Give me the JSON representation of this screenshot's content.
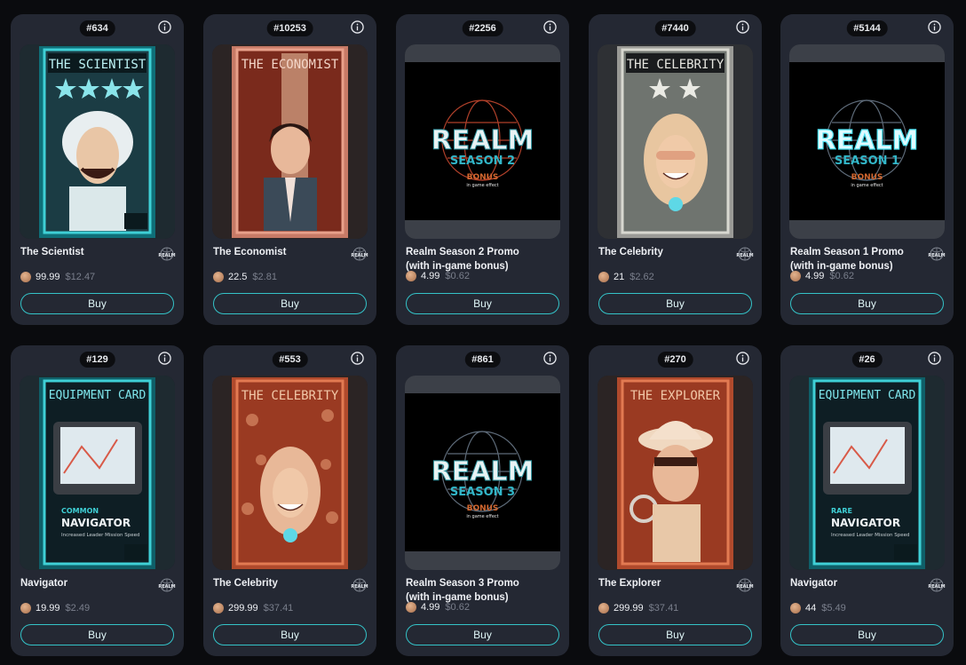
{
  "cards": [
    {
      "id": "#634",
      "name": "The Scientist",
      "price": "99.99",
      "usd": "$12.47",
      "buy": "Buy",
      "art_title": "THE SCIENTIST",
      "art_kind": "character",
      "theme": "teal"
    },
    {
      "id": "#10253",
      "name": "The Economist",
      "price": "22.5",
      "usd": "$2.81",
      "buy": "Buy",
      "art_title": "THE ECONOMIST",
      "art_kind": "character",
      "theme": "red"
    },
    {
      "id": "#2256",
      "name": "Realm Season 2 Promo (with in-game bonus)",
      "price": "4.99",
      "usd": "$0.62",
      "buy": "Buy",
      "art_title": "REALM",
      "art_sub": "SEASON 2",
      "art_bonus": "BONUS",
      "art_bonus2": "in game effect",
      "art_kind": "promo",
      "theme": "dark"
    },
    {
      "id": "#7440",
      "name": "The Celebrity",
      "price": "21",
      "usd": "$2.62",
      "buy": "Buy",
      "art_title": "THE CELEBRITY",
      "art_kind": "character",
      "theme": "gray"
    },
    {
      "id": "#5144",
      "name": "Realm Season 1 Promo (with in-game bonus)",
      "price": "4.99",
      "usd": "$0.62",
      "buy": "Buy",
      "art_title": "REALM",
      "art_sub": "SEASON 1",
      "art_bonus": "BONUS",
      "art_bonus2": "in game effect",
      "art_kind": "promo",
      "theme": "dark"
    },
    {
      "id": "#129",
      "name": "Navigator",
      "price": "19.99",
      "usd": "$2.49",
      "buy": "Buy",
      "art_title": "EQUIPMENT CARD",
      "art_rarity": "COMMON",
      "art_item": "NAVIGATOR",
      "art_desc": "Increased Leader Mission Speed",
      "art_kind": "equipment",
      "theme": "teal"
    },
    {
      "id": "#553",
      "name": "The Celebrity",
      "price": "299.99",
      "usd": "$37.41",
      "buy": "Buy",
      "art_title": "THE CELEBRITY",
      "art_kind": "character",
      "theme": "rust"
    },
    {
      "id": "#861",
      "name": "Realm Season 3 Promo (with in-game bonus)",
      "price": "4.99",
      "usd": "$0.62",
      "buy": "Buy",
      "art_title": "REALM",
      "art_sub": "SEASON 3",
      "art_bonus": "BONUS",
      "art_bonus2": "in game effect",
      "art_kind": "promo",
      "theme": "dark"
    },
    {
      "id": "#270",
      "name": "The Explorer",
      "price": "299.99",
      "usd": "$37.41",
      "buy": "Buy",
      "art_title": "THE EXPLORER",
      "art_kind": "character",
      "theme": "rust"
    },
    {
      "id": "#26",
      "name": "Navigator",
      "price": "44",
      "usd": "$5.49",
      "buy": "Buy",
      "art_title": "EQUIPMENT CARD",
      "art_rarity": "RARE",
      "art_item": "NAVIGATOR",
      "art_desc": "Increased Leader Mission Speed",
      "art_kind": "equipment",
      "theme": "teal"
    }
  ],
  "brand_label": "REALM",
  "colors": {
    "accent": "#34c3c8",
    "card_bg": "#242833",
    "page_bg": "#0a0b0e"
  },
  "icons": {
    "info": "info-icon",
    "coin": "coin-icon",
    "brand": "realm-logo"
  }
}
